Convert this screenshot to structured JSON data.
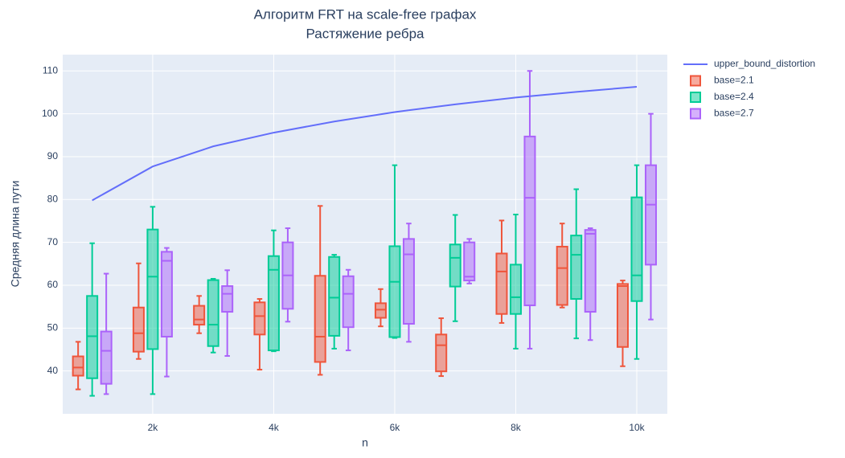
{
  "chart_data": {
    "type": "box",
    "title": "Алгоритм FRT на scale-free графах",
    "subtitle": "Растяжение ребра",
    "x_label": "n",
    "y_label": "Средняя длина пути",
    "xlim": [
      513,
      10505
    ],
    "ylim": [
      30,
      113.8
    ],
    "xticks": [
      {
        "value": 2000,
        "label": "2k"
      },
      {
        "value": 4000,
        "label": "4k"
      },
      {
        "value": 6000,
        "label": "6k"
      },
      {
        "value": 8000,
        "label": "8k"
      },
      {
        "value": 10000,
        "label": "10k"
      }
    ],
    "yticks": [
      40,
      50,
      60,
      70,
      80,
      90,
      100,
      110
    ],
    "grid": true,
    "legend": "right",
    "x": [
      1000,
      2000,
      3000,
      4000,
      5000,
      6000,
      7000,
      8000,
      9000,
      10000
    ],
    "line_series": [
      {
        "name": "upper_bound_distortion",
        "color": "#636efa",
        "values": [
          79.8,
          87.7,
          92.4,
          95.6,
          98.2,
          100.4,
          102.2,
          103.8,
          105.1,
          106.3
        ]
      }
    ],
    "series": [
      {
        "name": "base=2.1",
        "color": "#ef553b",
        "max": [
          46.8,
          65.1,
          57.5,
          56.8,
          78.5,
          59.1,
          52.3,
          75.1,
          74.4,
          61.1
        ],
        "q3": [
          43.4,
          54.8,
          55.2,
          56,
          62.2,
          55.8,
          48.5,
          67.4,
          69,
          60.3
        ],
        "median": [
          40.8,
          48.8,
          52,
          52.8,
          48,
          54.3,
          46,
          63.2,
          64,
          59.8
        ],
        "q1": [
          38.9,
          44.5,
          50.8,
          48.5,
          42.1,
          52.4,
          39.9,
          53.3,
          55.4,
          45.6
        ],
        "min": [
          35.7,
          42.8,
          48.8,
          40.3,
          39.1,
          50.4,
          38.8,
          51.2,
          54.8,
          41.1
        ]
      },
      {
        "name": "base=2.4",
        "color": "#00cc96",
        "max": [
          69.8,
          78.3,
          61.5,
          72.8,
          67.1,
          88,
          76.4,
          76.5,
          82.4,
          88
        ],
        "q3": [
          57.5,
          73,
          61.2,
          66.8,
          66.6,
          69.1,
          69.5,
          64.8,
          71.6,
          80.5
        ],
        "median": [
          48.1,
          62,
          50.8,
          63.6,
          57.1,
          60.8,
          66.4,
          57.2,
          67.1,
          62.3
        ],
        "q1": [
          38.3,
          45.1,
          45.8,
          44.8,
          48.2,
          47.9,
          59.7,
          53.3,
          56.8,
          56.3
        ],
        "min": [
          34.2,
          34.6,
          44.3,
          44.6,
          45.2,
          47.7,
          51.6,
          45.2,
          47.6,
          42.8
        ]
      },
      {
        "name": "base=2.7",
        "color": "#ab63fa",
        "max": [
          62.7,
          68.7,
          63.5,
          73.3,
          63.6,
          74.4,
          70.8,
          110,
          73.3,
          100
        ],
        "q3": [
          49.2,
          67.8,
          59.8,
          70,
          62.1,
          70.8,
          70,
          94.7,
          72.9,
          88
        ],
        "median": [
          44.7,
          65.7,
          58,
          62.3,
          58,
          67.2,
          62,
          80.4,
          72,
          78.8
        ],
        "q1": [
          37,
          48,
          53.8,
          54.5,
          50.2,
          51,
          61.1,
          55.3,
          53.8,
          64.8
        ],
        "min": [
          34.6,
          38.7,
          43.5,
          51.5,
          44.8,
          46.8,
          60.4,
          45.2,
          47.2,
          52
        ]
      }
    ]
  }
}
